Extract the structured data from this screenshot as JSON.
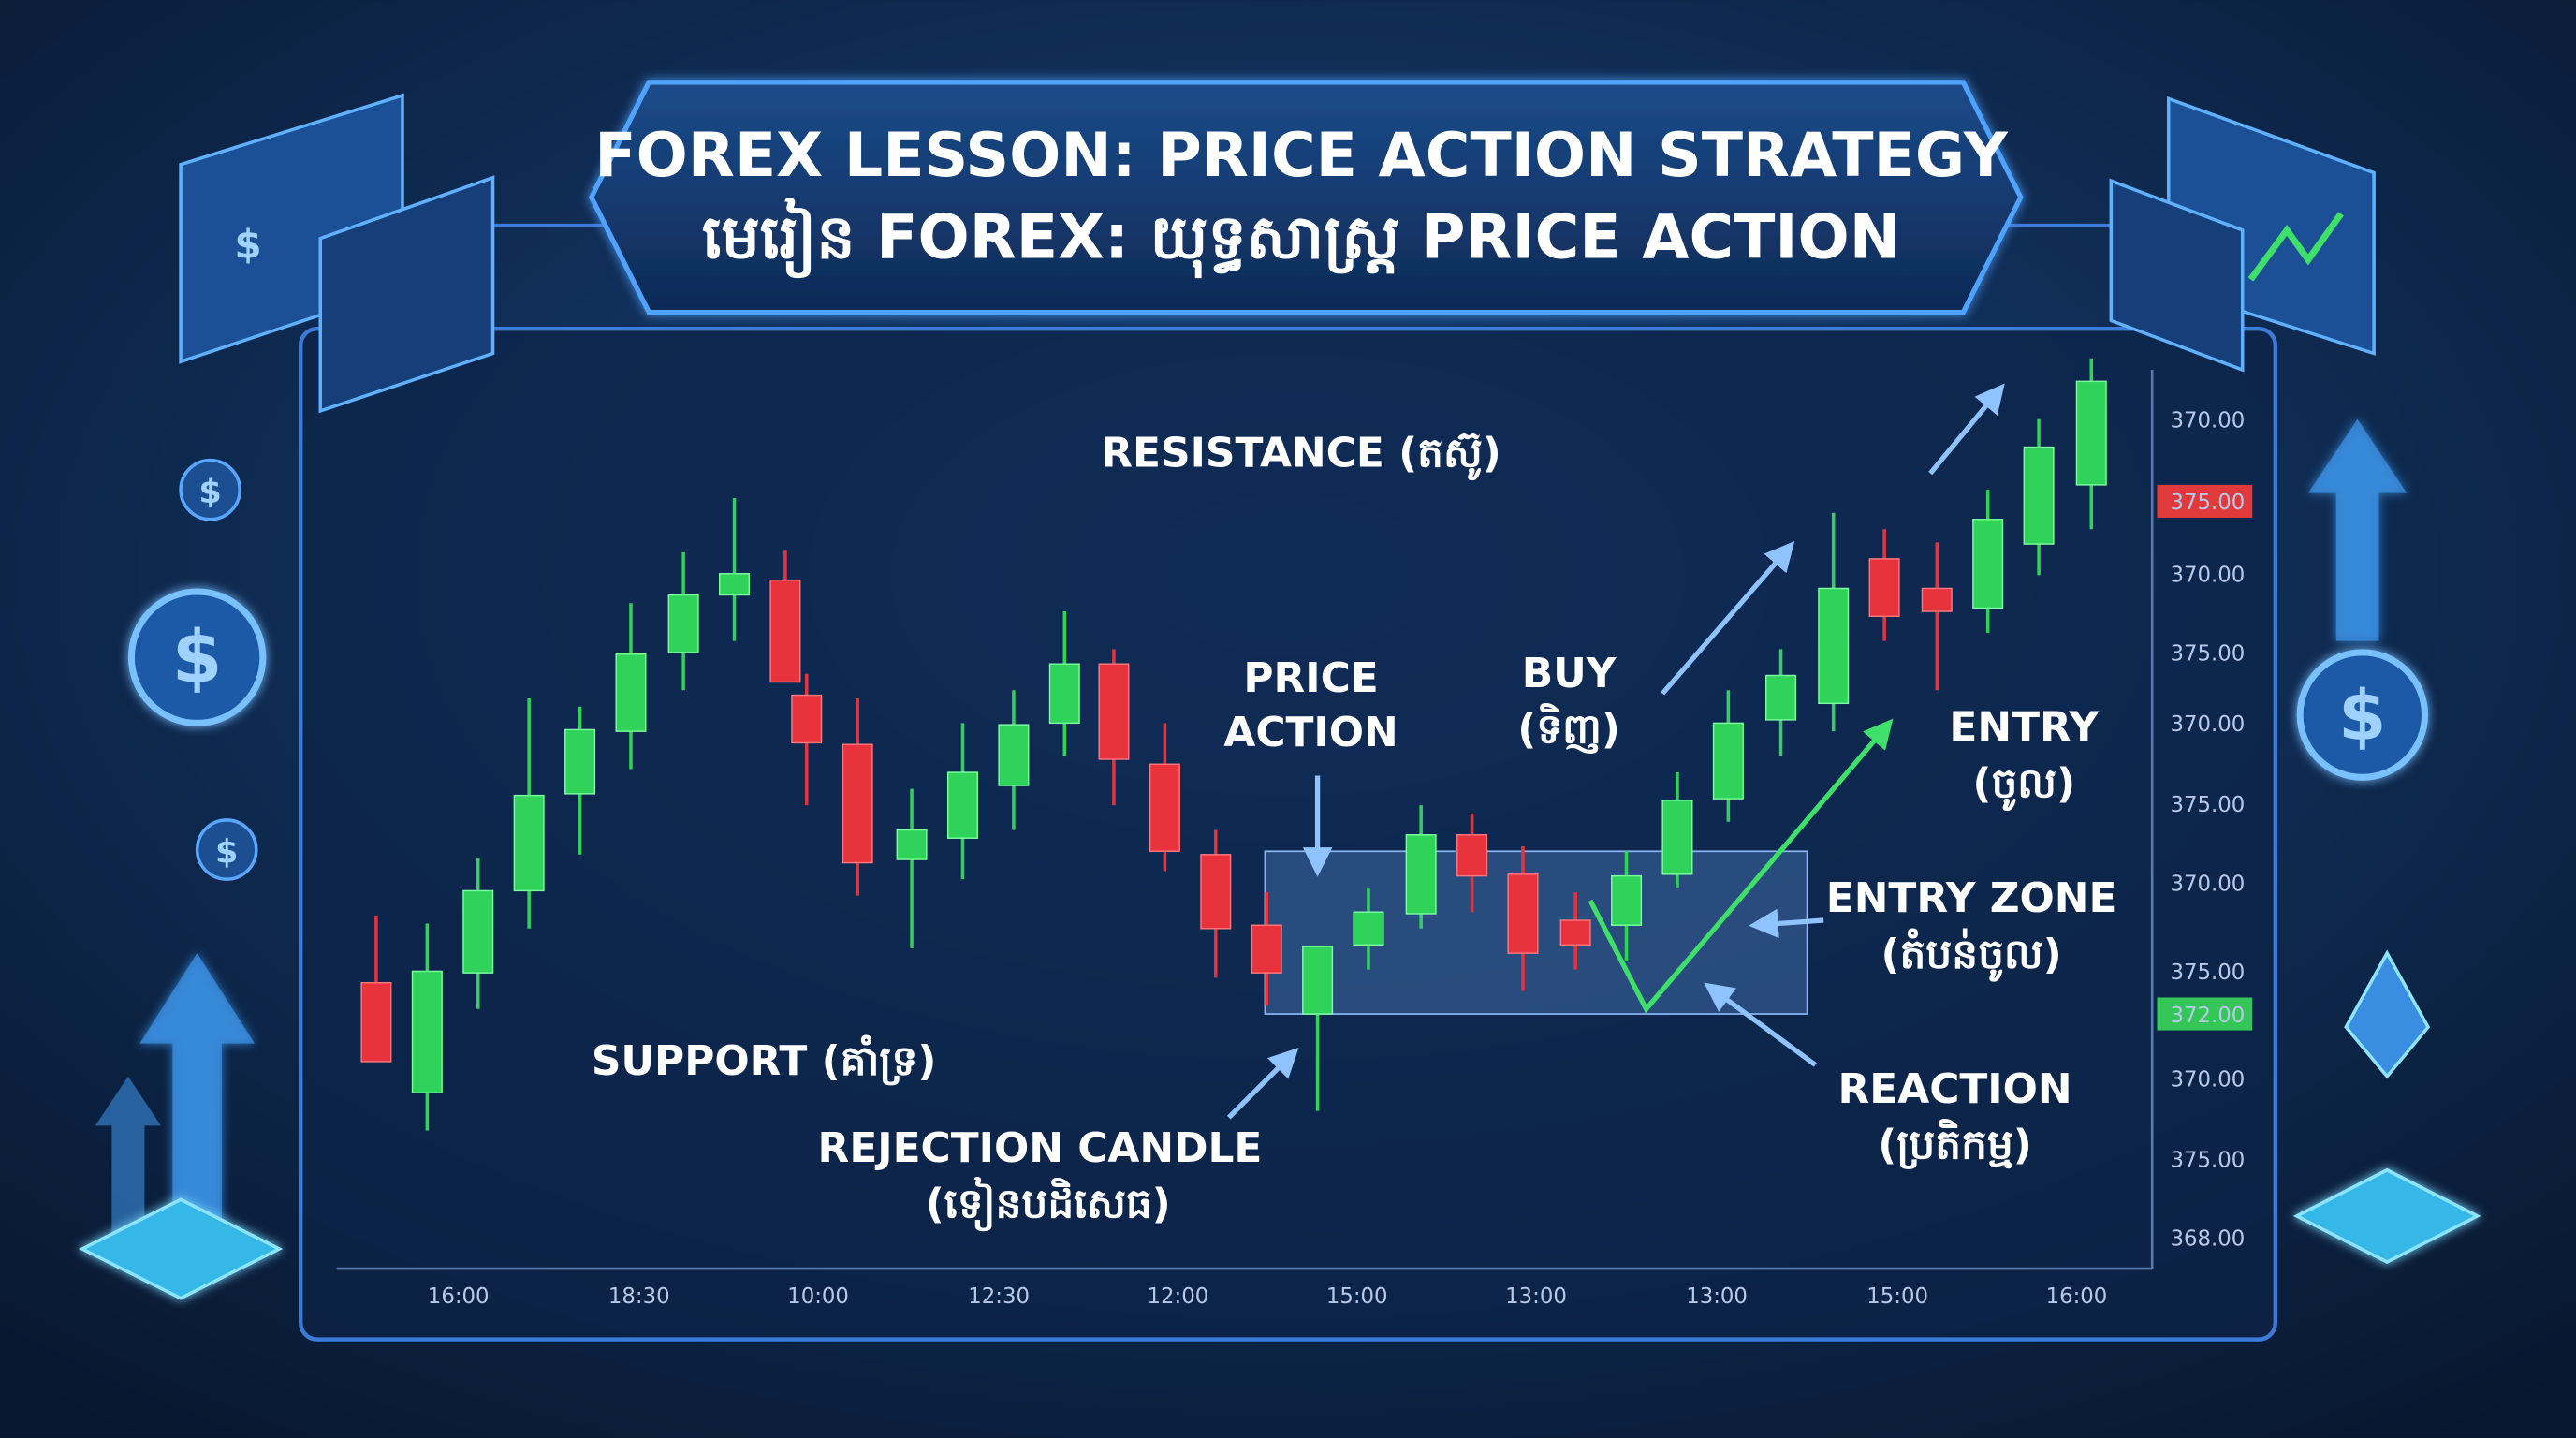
{
  "title": {
    "line1": "FOREX LESSON: PRICE ACTION STRATEGY",
    "line2": "មេរៀន FOREX: យុទ្ធសាស្ត្រ PRICE ACTION"
  },
  "labels": {
    "resistance": "RESISTANCE (តស៊ូ)",
    "support": "SUPPORT (គាំទ្រ)",
    "price_action": [
      "PRICE",
      "ACTION"
    ],
    "buy": [
      "BUY",
      "(ទិញ)"
    ],
    "entry": [
      "ENTRY",
      "(ចូល)"
    ],
    "entry_zone": [
      "ENTRY ZONE",
      "(តំបន់ចូល)"
    ],
    "rejection_candle": [
      "REJECTION CANDLE",
      "(ទៀនបដិសេធ)"
    ],
    "reaction": [
      "REACTION",
      "(ប្រតិកម្ម)"
    ]
  },
  "price_axis": [
    "370.00",
    "375.00",
    "370.00",
    "375.00",
    "370.00",
    "375.00",
    "370.00",
    "375.00",
    "372.00",
    "370.00",
    "375.00",
    "368.00"
  ],
  "time_axis": [
    "16:00",
    "18:30",
    "10:00",
    "12:30",
    "12:00",
    "15:00",
    "13:00",
    "13:00",
    "15:00",
    "16:00"
  ],
  "icons": {
    "dollar": "$"
  }
}
